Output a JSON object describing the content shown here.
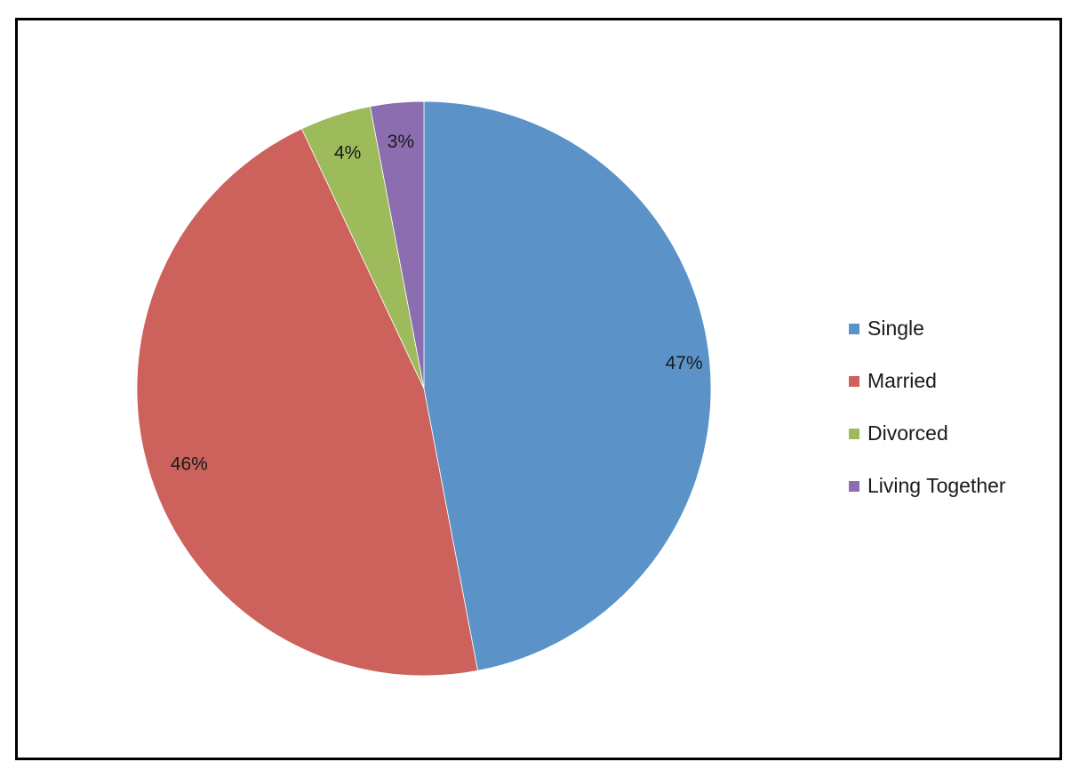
{
  "chart_data": {
    "type": "pie",
    "title": "",
    "categories": [
      "Single",
      "Married",
      "Divorced",
      "Living Together"
    ],
    "values": [
      47,
      46,
      4,
      3
    ],
    "value_labels": [
      "47%",
      "46%",
      "4%",
      "3%"
    ],
    "colors": [
      "#5B93C9",
      "#CC625B",
      "#9DBB5A",
      "#8B6DB0"
    ],
    "start_angle_deg": 0,
    "direction": "clockwise",
    "legend_position": "right"
  }
}
